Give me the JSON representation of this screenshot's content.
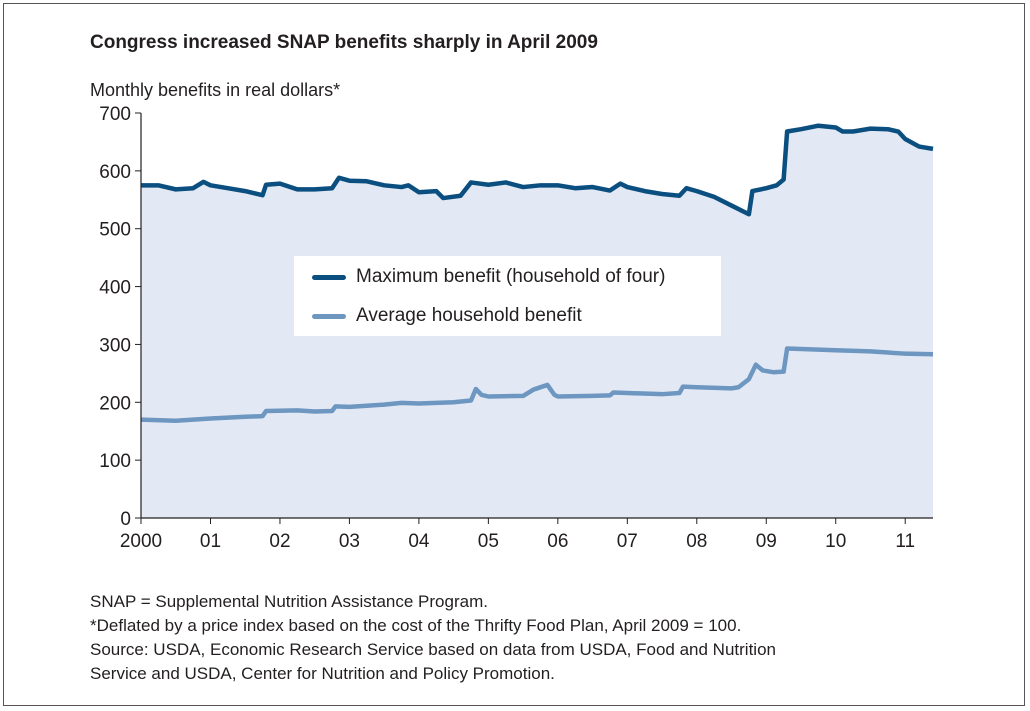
{
  "chart_data": {
    "type": "area",
    "title": "Congress increased SNAP benefits sharply in April 2009",
    "ylabel": "Monthly benefits in real dollars*",
    "ylim": [
      0,
      700
    ],
    "yticks": [
      0,
      100,
      200,
      300,
      400,
      500,
      600,
      700
    ],
    "xlim": [
      2000,
      2011.4
    ],
    "xticks": [
      2000,
      2001,
      2002,
      2003,
      2004,
      2005,
      2006,
      2007,
      2008,
      2009,
      2010,
      2011
    ],
    "xtick_labels": [
      "2000",
      "01",
      "02",
      "03",
      "04",
      "05",
      "06",
      "07",
      "08",
      "09",
      "10",
      "11"
    ],
    "grid": false,
    "legend_placement": "center",
    "series": [
      {
        "name": "Maximum benefit (household of four)",
        "color": "#0b4f80",
        "filled": true,
        "fill_color": "#e3e9f4",
        "x": [
          2000.0,
          2000.25,
          2000.5,
          2000.75,
          2000.9,
          2001.0,
          2001.25,
          2001.5,
          2001.75,
          2001.8,
          2002.0,
          2002.25,
          2002.5,
          2002.75,
          2002.85,
          2003.0,
          2003.25,
          2003.5,
          2003.75,
          2003.85,
          2004.0,
          2004.25,
          2004.35,
          2004.6,
          2004.75,
          2005.0,
          2005.25,
          2005.5,
          2005.75,
          2006.0,
          2006.25,
          2006.5,
          2006.75,
          2006.9,
          2007.0,
          2007.25,
          2007.5,
          2007.75,
          2007.85,
          2008.0,
          2008.25,
          2008.5,
          2008.75,
          2008.8,
          2009.0,
          2009.15,
          2009.25,
          2009.3,
          2009.5,
          2009.75,
          2010.0,
          2010.1,
          2010.25,
          2010.5,
          2010.75,
          2010.9,
          2011.0,
          2011.2,
          2011.4
        ],
        "values": [
          575,
          575,
          568,
          570,
          581,
          575,
          570,
          565,
          558,
          576,
          578,
          568,
          568,
          570,
          588,
          583,
          582,
          575,
          572,
          575,
          563,
          565,
          553,
          557,
          580,
          576,
          580,
          572,
          575,
          575,
          570,
          572,
          566,
          578,
          572,
          565,
          560,
          557,
          570,
          565,
          555,
          540,
          525,
          565,
          570,
          575,
          585,
          668,
          672,
          678,
          675,
          668,
          668,
          673,
          672,
          668,
          655,
          642,
          638
        ]
      },
      {
        "name": "Average household benefit",
        "color": "#6d97c1",
        "filled": false,
        "x": [
          2000.0,
          2000.5,
          2001.0,
          2001.5,
          2001.75,
          2001.8,
          2002.25,
          2002.5,
          2002.75,
          2002.8,
          2003.0,
          2003.5,
          2003.75,
          2004.0,
          2004.5,
          2004.75,
          2004.82,
          2004.9,
          2005.0,
          2005.5,
          2005.65,
          2005.85,
          2005.95,
          2006.0,
          2006.5,
          2006.75,
          2006.8,
          2007.0,
          2007.5,
          2007.75,
          2007.8,
          2008.0,
          2008.5,
          2008.6,
          2008.75,
          2008.85,
          2008.95,
          2009.1,
          2009.25,
          2009.3,
          2009.5,
          2010.0,
          2010.5,
          2011.0,
          2011.4
        ],
        "values": [
          170,
          168,
          172,
          175,
          176,
          185,
          186,
          184,
          185,
          193,
          192,
          196,
          199,
          198,
          200,
          203,
          223,
          213,
          210,
          211,
          222,
          230,
          213,
          210,
          211,
          212,
          217,
          216,
          214,
          216,
          227,
          226,
          224,
          226,
          240,
          265,
          255,
          252,
          253,
          293,
          292,
          290,
          288,
          284,
          283
        ]
      }
    ]
  },
  "notes": {
    "abbrev": "SNAP = Supplemental Nutrition Assistance Program.",
    "deflator": "*Deflated by a price index based on the cost of the Thrifty Food Plan, April 2009 = 100.",
    "source_line1": "Source:  USDA, Economic Research Service based on data from USDA, Food and Nutrition",
    "source_line2": "Service and USDA, Center for Nutrition and Policy Promotion."
  }
}
